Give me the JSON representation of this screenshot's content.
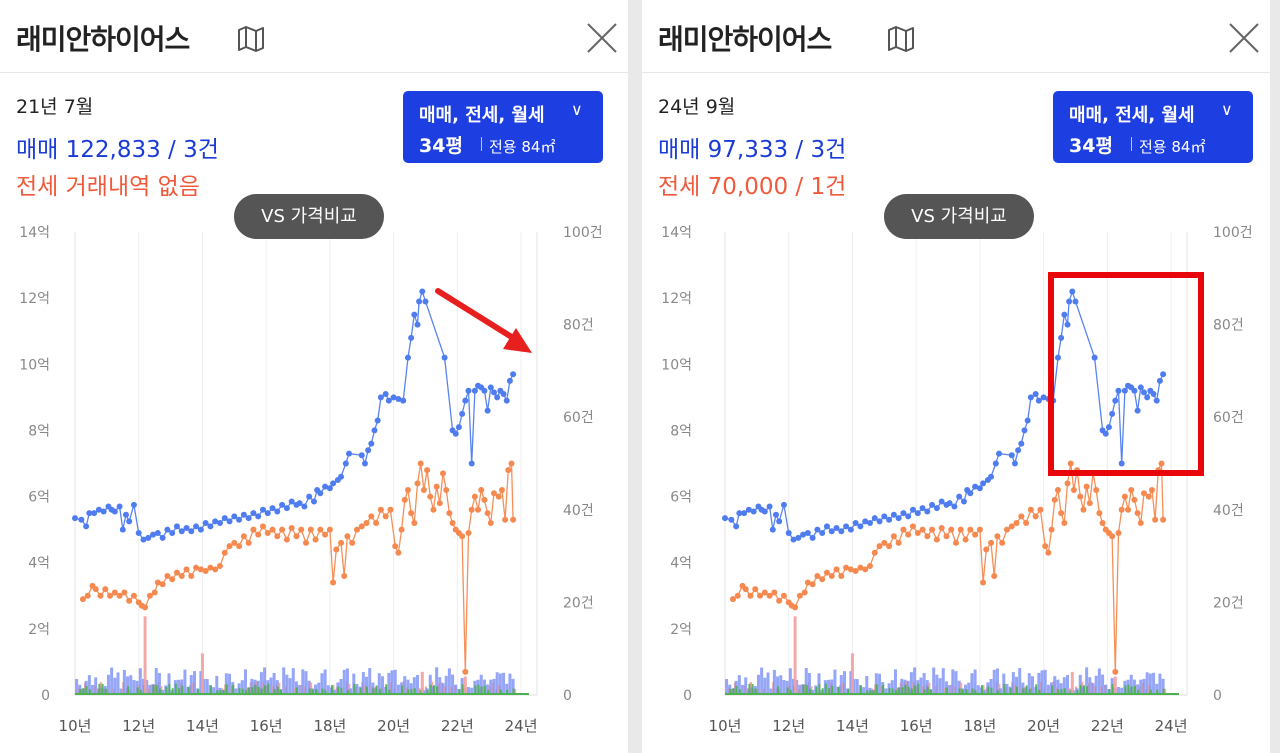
{
  "panels": [
    {
      "title": "래미안하이어스",
      "icons": {
        "map": "map-icon",
        "close": "close-icon"
      },
      "summary": {
        "date": "21년 7월",
        "sale": "매매 122,833 / 3건",
        "rent": "전세 거래내역 없음"
      },
      "filter": {
        "types": "매매, 전세, 월세",
        "size": "34평",
        "area": "전용 84㎡"
      },
      "vs_button": "VS 가격비교"
    },
    {
      "title": "래미안하이어스",
      "icons": {
        "map": "map-icon",
        "close": "close-icon"
      },
      "summary": {
        "date": "24년 9월",
        "sale": "매매 97,333 / 3건",
        "rent": "전세 70,000 / 1건"
      },
      "filter": {
        "types": "매매, 전세, 월세",
        "size": "34평",
        "area": "전용 84㎡"
      },
      "vs_button": "VS 가격비교"
    }
  ],
  "colors": {
    "sale": "#4f7df0",
    "rent": "#f5894f",
    "volume_green": "#4caf50",
    "filter_bg": "#1d3ee0",
    "highlight": "#e8060b",
    "arrow": "#e81f1f"
  },
  "annotations": {
    "left_panel": "red arrow pointing down-right from the 21년 peak",
    "right_panel": "red rectangle around 20년–24년 sale prices"
  },
  "chart_data": {
    "type": "line",
    "x_range": [
      2010,
      2024.5
    ],
    "y_left_range": [
      0,
      14
    ],
    "y_right_range": [
      0,
      100
    ],
    "y_left_ticks": [
      "14억",
      "12억",
      "10억",
      "8억",
      "6억",
      "4억",
      "2억",
      "0"
    ],
    "y_right_ticks": [
      "100건",
      "80건",
      "60건",
      "40건",
      "20건",
      "0"
    ],
    "x_ticks": [
      "10년",
      "12년",
      "14년",
      "16년",
      "18년",
      "20년",
      "22년",
      "24년"
    ],
    "grid": "vertical lines at each year tick",
    "series": [
      {
        "role": "sale",
        "unit": "억",
        "points": [
          [
            2010.0,
            5.35
          ],
          [
            2010.2,
            5.3
          ],
          [
            2010.35,
            5.1
          ],
          [
            2010.45,
            5.5
          ],
          [
            2010.6,
            5.5
          ],
          [
            2010.75,
            5.6
          ],
          [
            2010.9,
            5.55
          ],
          [
            2011.05,
            5.7
          ],
          [
            2011.15,
            5.6
          ],
          [
            2011.25,
            5.55
          ],
          [
            2011.4,
            5.7
          ],
          [
            2011.5,
            5.0
          ],
          [
            2011.6,
            5.45
          ],
          [
            2011.7,
            5.25
          ],
          [
            2011.85,
            5.75
          ],
          [
            2012.0,
            4.9
          ],
          [
            2012.15,
            4.7
          ],
          [
            2012.3,
            4.75
          ],
          [
            2012.45,
            4.85
          ],
          [
            2012.6,
            4.9
          ],
          [
            2012.75,
            4.75
          ],
          [
            2012.9,
            5.0
          ],
          [
            2013.05,
            4.9
          ],
          [
            2013.2,
            5.1
          ],
          [
            2013.35,
            4.95
          ],
          [
            2013.5,
            5.05
          ],
          [
            2013.65,
            4.95
          ],
          [
            2013.8,
            5.1
          ],
          [
            2013.95,
            5.0
          ],
          [
            2014.1,
            5.2
          ],
          [
            2014.25,
            5.1
          ],
          [
            2014.4,
            5.25
          ],
          [
            2014.55,
            5.2
          ],
          [
            2014.7,
            5.35
          ],
          [
            2014.85,
            5.25
          ],
          [
            2015.0,
            5.4
          ],
          [
            2015.15,
            5.3
          ],
          [
            2015.3,
            5.45
          ],
          [
            2015.45,
            5.35
          ],
          [
            2015.6,
            5.5
          ],
          [
            2015.75,
            5.4
          ],
          [
            2015.9,
            5.6
          ],
          [
            2016.05,
            5.5
          ],
          [
            2016.2,
            5.65
          ],
          [
            2016.35,
            5.55
          ],
          [
            2016.5,
            5.75
          ],
          [
            2016.65,
            5.65
          ],
          [
            2016.8,
            5.85
          ],
          [
            2016.95,
            5.75
          ],
          [
            2017.05,
            5.8
          ],
          [
            2017.2,
            5.7
          ],
          [
            2017.35,
            6.0
          ],
          [
            2017.5,
            5.85
          ],
          [
            2017.6,
            6.2
          ],
          [
            2017.7,
            6.1
          ],
          [
            2017.85,
            6.3
          ],
          [
            2018.0,
            6.25
          ],
          [
            2018.1,
            6.4
          ],
          [
            2018.25,
            6.5
          ],
          [
            2018.35,
            6.6
          ],
          [
            2018.5,
            7.0
          ],
          [
            2018.6,
            7.3
          ],
          [
            2019.0,
            7.25
          ],
          [
            2019.1,
            7.0
          ],
          [
            2019.2,
            7.4
          ],
          [
            2019.3,
            7.6
          ],
          [
            2019.4,
            8.0
          ],
          [
            2019.5,
            8.3
          ],
          [
            2019.6,
            9.0
          ],
          [
            2019.75,
            9.1
          ],
          [
            2019.85,
            8.9
          ],
          [
            2020.0,
            9.0
          ],
          [
            2020.15,
            8.95
          ],
          [
            2020.3,
            8.9
          ],
          [
            2020.45,
            10.2
          ],
          [
            2020.55,
            10.8
          ],
          [
            2020.65,
            11.5
          ],
          [
            2020.75,
            11.2
          ],
          [
            2020.8,
            11.9
          ],
          [
            2020.9,
            12.2
          ],
          [
            2021.0,
            11.9
          ],
          [
            2021.6,
            10.2
          ],
          [
            2021.85,
            8.0
          ],
          [
            2021.95,
            7.9
          ],
          [
            2022.05,
            8.1
          ],
          [
            2022.15,
            8.5
          ],
          [
            2022.25,
            8.9
          ],
          [
            2022.35,
            9.2
          ],
          [
            2022.45,
            7.0
          ],
          [
            2022.55,
            9.2
          ],
          [
            2022.65,
            9.35
          ],
          [
            2022.75,
            9.3
          ],
          [
            2022.85,
            9.2
          ],
          [
            2022.95,
            8.6
          ],
          [
            2023.05,
            9.3
          ],
          [
            2023.15,
            9.15
          ],
          [
            2023.25,
            9.0
          ],
          [
            2023.35,
            9.2
          ],
          [
            2023.45,
            9.1
          ],
          [
            2023.55,
            8.9
          ],
          [
            2023.65,
            9.5
          ],
          [
            2023.75,
            9.7
          ]
        ]
      },
      {
        "role": "rent",
        "unit": "억",
        "points": [
          [
            2010.25,
            2.9
          ],
          [
            2010.4,
            3.0
          ],
          [
            2010.55,
            3.3
          ],
          [
            2010.65,
            3.2
          ],
          [
            2010.8,
            3.0
          ],
          [
            2010.95,
            3.2
          ],
          [
            2011.1,
            3.0
          ],
          [
            2011.25,
            3.1
          ],
          [
            2011.4,
            3.0
          ],
          [
            2011.55,
            3.1
          ],
          [
            2011.7,
            2.85
          ],
          [
            2011.85,
            3.0
          ],
          [
            2012.0,
            2.8
          ],
          [
            2012.1,
            2.7
          ],
          [
            2012.2,
            2.65
          ],
          [
            2012.35,
            3.0
          ],
          [
            2012.5,
            3.1
          ],
          [
            2012.6,
            3.4
          ],
          [
            2012.75,
            3.35
          ],
          [
            2012.9,
            3.6
          ],
          [
            2013.05,
            3.5
          ],
          [
            2013.2,
            3.7
          ],
          [
            2013.35,
            3.6
          ],
          [
            2013.5,
            3.8
          ],
          [
            2013.65,
            3.6
          ],
          [
            2013.8,
            3.85
          ],
          [
            2013.95,
            3.8
          ],
          [
            2014.1,
            3.75
          ],
          [
            2014.25,
            3.85
          ],
          [
            2014.4,
            3.8
          ],
          [
            2014.55,
            3.9
          ],
          [
            2014.7,
            4.3
          ],
          [
            2014.85,
            4.5
          ],
          [
            2015.0,
            4.6
          ],
          [
            2015.15,
            4.5
          ],
          [
            2015.3,
            4.8
          ],
          [
            2015.45,
            4.6
          ],
          [
            2015.6,
            5.0
          ],
          [
            2015.75,
            4.85
          ],
          [
            2015.9,
            5.1
          ],
          [
            2016.05,
            4.9
          ],
          [
            2016.2,
            5.0
          ],
          [
            2016.35,
            4.8
          ],
          [
            2016.5,
            5.0
          ],
          [
            2016.65,
            4.7
          ],
          [
            2016.8,
            5.05
          ],
          [
            2016.95,
            4.8
          ],
          [
            2017.1,
            5.0
          ],
          [
            2017.25,
            4.6
          ],
          [
            2017.4,
            5.0
          ],
          [
            2017.55,
            4.7
          ],
          [
            2017.7,
            5.0
          ],
          [
            2017.85,
            4.85
          ],
          [
            2018.0,
            5.0
          ],
          [
            2018.1,
            3.4
          ],
          [
            2018.2,
            4.4
          ],
          [
            2018.35,
            4.6
          ],
          [
            2018.45,
            3.6
          ],
          [
            2018.55,
            4.8
          ],
          [
            2018.7,
            4.6
          ],
          [
            2018.85,
            5.0
          ],
          [
            2019.0,
            5.1
          ],
          [
            2019.15,
            5.2
          ],
          [
            2019.3,
            5.4
          ],
          [
            2019.45,
            5.2
          ],
          [
            2019.6,
            5.6
          ],
          [
            2019.75,
            5.4
          ],
          [
            2019.9,
            5.6
          ],
          [
            2020.05,
            4.5
          ],
          [
            2020.15,
            4.3
          ],
          [
            2020.25,
            5.0
          ],
          [
            2020.35,
            5.9
          ],
          [
            2020.45,
            6.2
          ],
          [
            2020.55,
            5.5
          ],
          [
            2020.65,
            5.2
          ],
          [
            2020.75,
            6.4
          ],
          [
            2020.85,
            7.0
          ],
          [
            2020.95,
            6.2
          ],
          [
            2021.05,
            6.8
          ],
          [
            2021.15,
            6.0
          ],
          [
            2021.25,
            5.6
          ],
          [
            2021.35,
            6.3
          ],
          [
            2021.45,
            5.8
          ],
          [
            2021.55,
            6.7
          ],
          [
            2021.65,
            6.2
          ],
          [
            2021.75,
            5.5
          ],
          [
            2021.85,
            5.2
          ],
          [
            2021.95,
            5.0
          ],
          [
            2022.05,
            4.9
          ],
          [
            2022.15,
            4.8
          ],
          [
            2022.25,
            0.7
          ],
          [
            2022.35,
            4.9
          ],
          [
            2022.45,
            5.6
          ],
          [
            2022.55,
            6.0
          ],
          [
            2022.65,
            5.6
          ],
          [
            2022.75,
            6.2
          ],
          [
            2022.85,
            5.9
          ],
          [
            2022.95,
            5.5
          ],
          [
            2023.05,
            5.2
          ],
          [
            2023.15,
            6.1
          ],
          [
            2023.3,
            6.0
          ],
          [
            2023.4,
            6.2
          ],
          [
            2023.5,
            5.3
          ],
          [
            2023.6,
            6.8
          ],
          [
            2023.7,
            7.0
          ],
          [
            2023.75,
            5.3
          ]
        ]
      }
    ]
  }
}
